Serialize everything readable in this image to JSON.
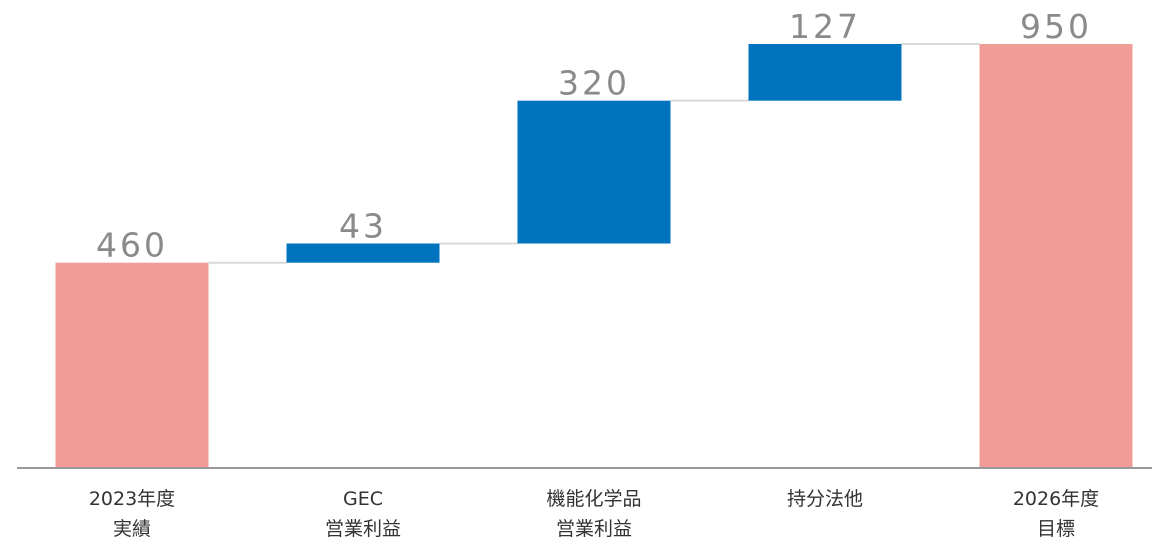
{
  "chart_data": {
    "type": "waterfall",
    "categories": [
      [
        "2023年度",
        "実績"
      ],
      [
        "GEC",
        "営業利益"
      ],
      [
        "機能化学品",
        "営業利益"
      ],
      [
        "持分法他"
      ],
      [
        "2026年度",
        "目標"
      ]
    ],
    "values": [
      460,
      43,
      320,
      127,
      950
    ],
    "measures": [
      "absolute",
      "relative",
      "relative",
      "relative",
      "total"
    ],
    "colors": {
      "absolute": "#f29c97",
      "relative": "#0073bf",
      "total": "#f29c97"
    },
    "ylim": [
      0,
      950
    ]
  }
}
